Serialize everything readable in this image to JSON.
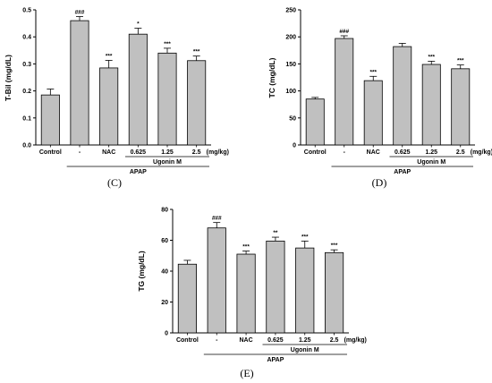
{
  "chart_data": [
    {
      "type": "bar",
      "panel_label": "(C)",
      "ylabel": "T-Bil (mg/dL)",
      "ylim": [
        0,
        0.5
      ],
      "yticks": [
        "0.0",
        "0.1",
        "0.2",
        "0.3",
        "0.4",
        "0.5"
      ],
      "categories": [
        "Control",
        "-",
        "NAC",
        "0.625",
        "1.25",
        "2.5"
      ],
      "values": [
        0.185,
        0.46,
        0.285,
        0.41,
        0.34,
        0.312
      ],
      "errors": [
        0.022,
        0.015,
        0.028,
        0.022,
        0.018,
        0.017
      ],
      "significance": [
        "",
        "###",
        "***",
        "*",
        "***",
        "***"
      ],
      "unit_label": "(mg/kg)",
      "group_labels": {
        "apap": "APAP",
        "ugonin": "Ugonin M"
      },
      "bar_color": "#c0c0c0"
    },
    {
      "type": "bar",
      "panel_label": "(D)",
      "ylabel": "TC (mg/dL)",
      "ylim": [
        0,
        250
      ],
      "yticks": [
        "0",
        "50",
        "100",
        "150",
        "200",
        "250"
      ],
      "categories": [
        "Control",
        "-",
        "NAC",
        "0.625",
        "1.25",
        "2.5"
      ],
      "values": [
        85,
        197,
        119,
        182,
        149,
        141
      ],
      "errors": [
        3,
        5,
        8,
        6,
        6,
        7
      ],
      "significance": [
        "",
        "###",
        "***",
        "",
        "***",
        "***"
      ],
      "unit_label": "(mg/kg)",
      "group_labels": {
        "apap": "APAP",
        "ugonin": "Ugonin M"
      },
      "bar_color": "#c0c0c0"
    },
    {
      "type": "bar",
      "panel_label": "(E)",
      "ylabel": "TG (mg/dL)",
      "ylim": [
        0,
        80
      ],
      "yticks": [
        "0",
        "20",
        "40",
        "60",
        "80"
      ],
      "categories": [
        "Control",
        "-",
        "NAC",
        "0.625",
        "1.25",
        "2.5"
      ],
      "values": [
        44.5,
        68,
        51,
        59.5,
        55,
        52
      ],
      "errors": [
        2.5,
        3.5,
        2,
        2.5,
        4.5,
        1.8
      ],
      "significance": [
        "",
        "###",
        "***",
        "**",
        "***",
        "***"
      ],
      "unit_label": "(mg/kg)",
      "group_labels": {
        "apap": "APAP",
        "ugonin": "Ugonin M"
      },
      "bar_color": "#c0c0c0"
    }
  ]
}
